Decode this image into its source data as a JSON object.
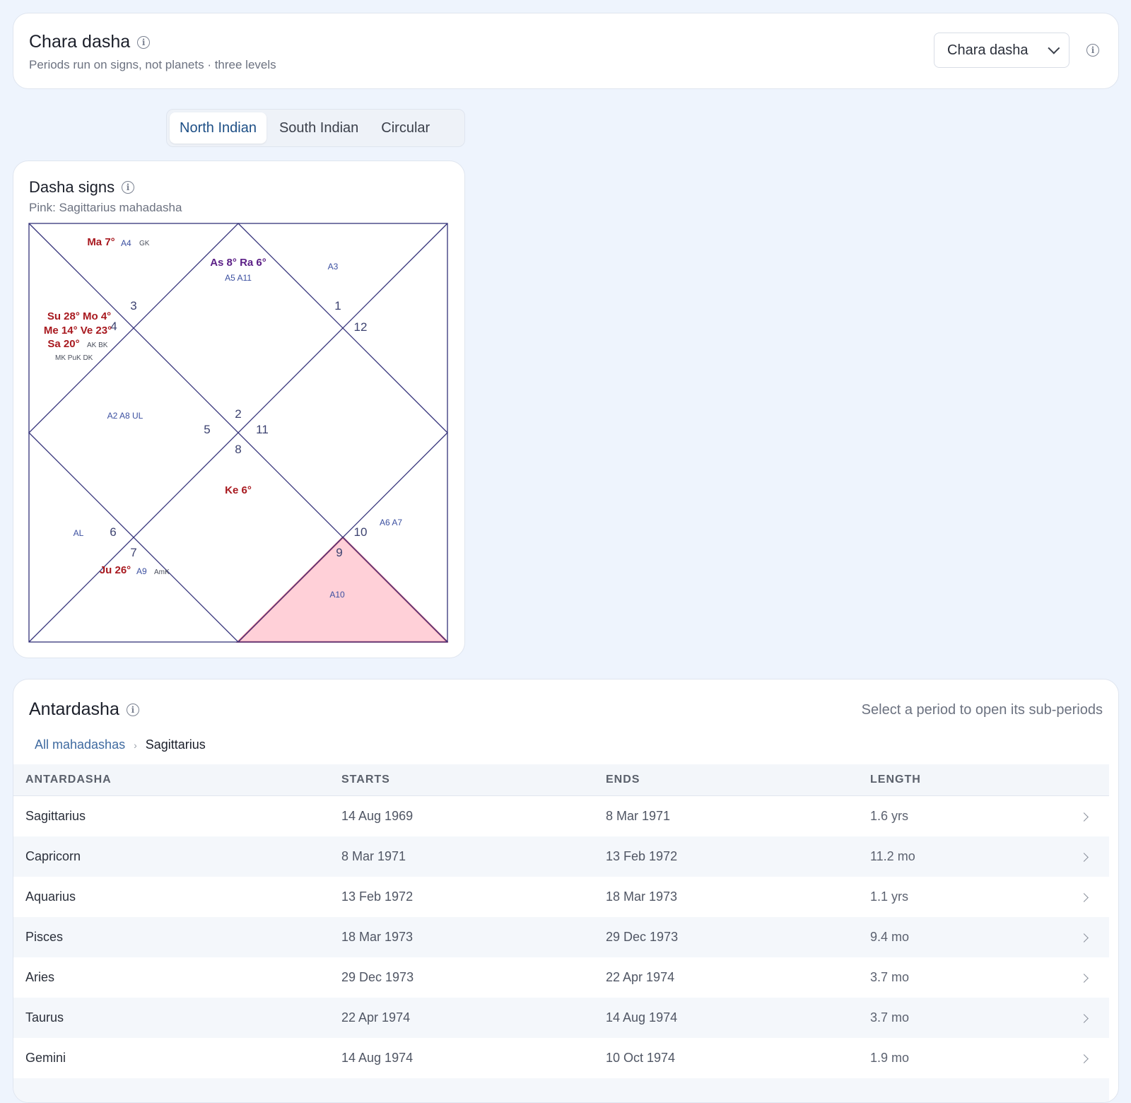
{
  "header": {
    "title": "Chara dasha",
    "subtitle": "Periods run on signs, not planets · three levels",
    "select_value": "Chara dasha"
  },
  "chart_style_tabs": [
    {
      "label": "North Indian",
      "active": true
    },
    {
      "label": "South Indian",
      "active": false
    },
    {
      "label": "Circular",
      "active": false
    }
  ],
  "chart_card": {
    "title": "Dasha signs",
    "subtitle": "Pink: Sagittarius mahadasha",
    "highlight_color": "#ffd0d8",
    "houses": [
      {
        "sign": "1",
        "planets": "As 8°  Ra 6°",
        "karakas": "",
        "arudhas": "A5  A11"
      },
      {
        "sign": "2",
        "planets": "",
        "karakas": "",
        "arudhas": "A3"
      },
      {
        "sign": "3",
        "planets": "Ma 7°",
        "karakas": "GK",
        "arudhas": "A4"
      },
      {
        "sign": "4",
        "planets_line1": "Su 28°  Mo 4°",
        "planets_line2": "Me 14°  Ve 23°",
        "planets_line3": "Sa 20°",
        "karakas_line3": "AK  BK",
        "karakas_line4": "MK  PuK  DK"
      },
      {
        "sign": "5",
        "planets": "",
        "karakas": "",
        "arudhas": "A2  A8  UL"
      },
      {
        "sign": "6",
        "planets": "",
        "karakas": "",
        "arudhas": "AL"
      },
      {
        "sign": "7",
        "planets": "Ju 26°",
        "karakas": "AmK",
        "arudhas": "A9"
      },
      {
        "sign": "8",
        "planets": "Ke 6°",
        "karakas": "",
        "arudhas": ""
      },
      {
        "sign": "9",
        "planets": "",
        "karakas": "",
        "arudhas": "A10"
      },
      {
        "sign": "10",
        "planets": "",
        "karakas": "",
        "arudhas": "A6  A7"
      },
      {
        "sign": "11",
        "planets": "",
        "karakas": "",
        "arudhas": ""
      },
      {
        "sign": "12",
        "planets": "",
        "karakas": "",
        "arudhas": ""
      }
    ]
  },
  "antardasha": {
    "title": "Antardasha",
    "hint": "Select a period to open its sub-periods",
    "breadcrumb_root": "All mahadashas",
    "breadcrumb_current": "Sagittarius",
    "columns": [
      "ANTARDASHA",
      "STARTS",
      "ENDS",
      "LENGTH"
    ],
    "rows": [
      {
        "sign": "Sagittarius",
        "starts": "14 Aug 1969",
        "ends": "8 Mar 1971",
        "length": "1.6 yrs"
      },
      {
        "sign": "Capricorn",
        "starts": "8 Mar 1971",
        "ends": "13 Feb 1972",
        "length": "11.2 mo"
      },
      {
        "sign": "Aquarius",
        "starts": "13 Feb 1972",
        "ends": "18 Mar 1973",
        "length": "1.1 yrs"
      },
      {
        "sign": "Pisces",
        "starts": "18 Mar 1973",
        "ends": "29 Dec 1973",
        "length": "9.4 mo"
      },
      {
        "sign": "Aries",
        "starts": "29 Dec 1973",
        "ends": "22 Apr 1974",
        "length": "3.7 mo"
      },
      {
        "sign": "Taurus",
        "starts": "22 Apr 1974",
        "ends": "14 Aug 1974",
        "length": "3.7 mo"
      },
      {
        "sign": "Gemini",
        "starts": "14 Aug 1974",
        "ends": "10 Oct 1974",
        "length": "1.9 mo"
      },
      {
        "sign": "",
        "starts": "",
        "ends": "",
        "length": ""
      }
    ]
  }
}
